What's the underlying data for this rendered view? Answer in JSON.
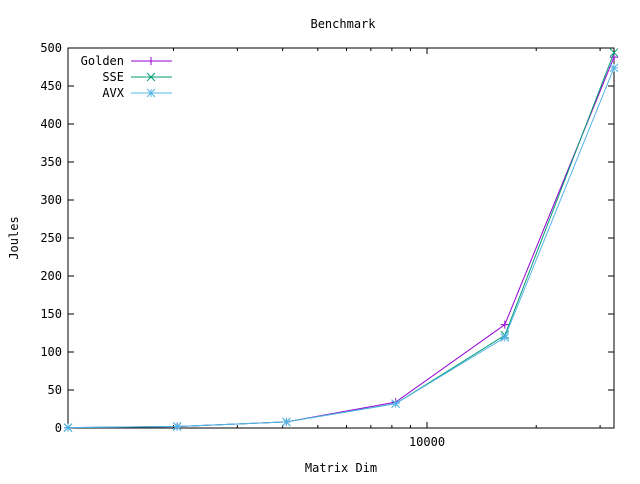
{
  "chart_data": {
    "type": "line",
    "title": "Benchmark",
    "xlabel": "Matrix Dim",
    "ylabel": "Joules",
    "x_scale": "log",
    "xlim": [
      1024,
      32768
    ],
    "ylim": [
      0,
      500
    ],
    "x_ticks": [
      {
        "value": 10000,
        "label": "10000"
      }
    ],
    "y_ticks": [
      {
        "value": 0,
        "label": "0"
      },
      {
        "value": 50,
        "label": "50"
      },
      {
        "value": 100,
        "label": "100"
      },
      {
        "value": 150,
        "label": "150"
      },
      {
        "value": 200,
        "label": "200"
      },
      {
        "value": 250,
        "label": "250"
      },
      {
        "value": 300,
        "label": "300"
      },
      {
        "value": 350,
        "label": "350"
      },
      {
        "value": 400,
        "label": "400"
      },
      {
        "value": 450,
        "label": "450"
      },
      {
        "value": 500,
        "label": "500"
      }
    ],
    "grid": false,
    "legend_position": "top-left",
    "series": [
      {
        "name": "Golden",
        "color": "#9400d3",
        "marker": "plus",
        "x": [
          1024,
          2048,
          4096,
          8192,
          16384,
          32768
        ],
        "y": [
          0.5,
          2,
          8,
          34,
          136,
          488
        ]
      },
      {
        "name": "SSE",
        "color": "#009e73",
        "marker": "cross",
        "x": [
          1024,
          2048,
          4096,
          8192,
          16384,
          32768
        ],
        "y": [
          0.5,
          2,
          8,
          32,
          122,
          494
        ]
      },
      {
        "name": "AVX",
        "color": "#56b4e9",
        "marker": "star",
        "x": [
          1024,
          2048,
          4096,
          8192,
          16384,
          32768
        ],
        "y": [
          0.5,
          2,
          8,
          32,
          119,
          474
        ]
      }
    ]
  }
}
